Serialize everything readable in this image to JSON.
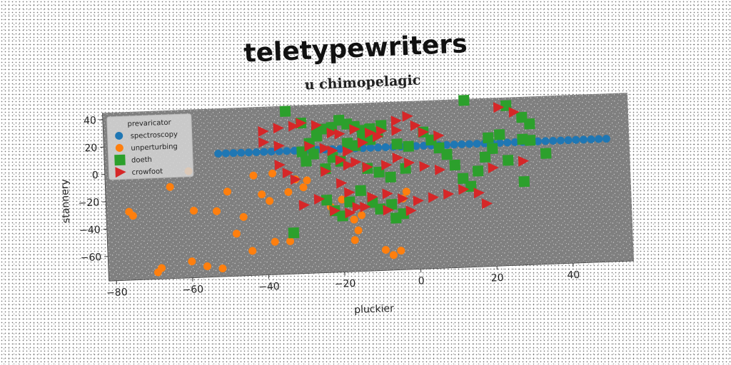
{
  "chart_data": {
    "type": "scatter",
    "title": "teletypewriters",
    "subtitle": "u chimopelagic",
    "xlabel": "pluckier",
    "ylabel": "stannery",
    "xlim": [
      -82,
      56
    ],
    "ylim": [
      -78,
      45
    ],
    "xticks": [
      -80,
      -60,
      -40,
      -20,
      0,
      20,
      40
    ],
    "yticks": [
      -60,
      -40,
      -20,
      0,
      20,
      40
    ],
    "tick_labels_x": [
      "−80",
      "−60",
      "−40",
      "−20",
      "0",
      "20",
      "40"
    ],
    "tick_labels_y": [
      "−60",
      "−40",
      "−20",
      "0",
      "20",
      "40"
    ],
    "grid": false,
    "legend": {
      "title": "prevaricator",
      "position": "top-left"
    },
    "series": [
      {
        "name": "spectroscopy",
        "marker": "circle",
        "color": "#1f77b4",
        "points": [
          [
            -52,
            12
          ],
          [
            -50,
            12
          ],
          [
            -48,
            12
          ],
          [
            -46,
            12
          ],
          [
            -44,
            12
          ],
          [
            -42,
            12
          ],
          [
            -40,
            12
          ],
          [
            -38,
            12
          ],
          [
            -36,
            12
          ],
          [
            -34,
            12
          ],
          [
            -32,
            12
          ],
          [
            -30,
            12
          ],
          [
            -28,
            12
          ],
          [
            -26,
            12
          ],
          [
            -24,
            12
          ],
          [
            -22,
            12
          ],
          [
            -20,
            12
          ],
          [
            -18,
            12
          ],
          [
            -16,
            12
          ],
          [
            -14,
            12
          ],
          [
            -12,
            12
          ],
          [
            -10,
            12
          ],
          [
            -8,
            12
          ],
          [
            -6,
            12
          ],
          [
            -4,
            12
          ],
          [
            -2,
            12
          ],
          [
            0,
            12
          ],
          [
            2,
            12
          ],
          [
            4,
            12
          ],
          [
            6,
            12
          ],
          [
            8,
            12
          ],
          [
            10,
            12
          ],
          [
            12,
            12
          ],
          [
            14,
            12
          ],
          [
            16,
            12
          ],
          [
            18,
            12
          ],
          [
            20,
            12
          ],
          [
            22,
            12
          ],
          [
            24,
            12
          ],
          [
            26,
            12
          ],
          [
            28,
            12
          ],
          [
            30,
            12
          ],
          [
            32,
            12
          ],
          [
            34,
            12
          ],
          [
            36,
            12
          ],
          [
            38,
            12
          ],
          [
            40,
            12
          ],
          [
            42,
            12
          ],
          [
            44,
            12
          ],
          [
            46,
            12
          ],
          [
            48,
            12
          ],
          [
            50,
            12
          ]
        ]
      },
      {
        "name": "unperturbing",
        "marker": "circle",
        "color": "#ff7f0e",
        "points": [
          [
            -76,
            -28
          ],
          [
            -75,
            -31
          ],
          [
            -69,
            -73
          ],
          [
            -68,
            -70
          ],
          [
            -65,
            -11
          ],
          [
            -60,
            0
          ],
          [
            -60,
            -66
          ],
          [
            -59,
            -29
          ],
          [
            -56,
            -70
          ],
          [
            -53,
            -30
          ],
          [
            -52,
            -72
          ],
          [
            -50,
            -16
          ],
          [
            -48,
            -47
          ],
          [
            -46,
            -35
          ],
          [
            -44,
            -60
          ],
          [
            -43,
            -5
          ],
          [
            -41,
            -19
          ],
          [
            -39,
            -24
          ],
          [
            -38,
            -54
          ],
          [
            -38,
            -4
          ],
          [
            -34,
            -54
          ],
          [
            -34,
            -18
          ],
          [
            -32,
            -9
          ],
          [
            -30,
            -15
          ],
          [
            -29,
            -10
          ],
          [
            -23,
            -30
          ],
          [
            -20,
            -25
          ],
          [
            -17,
            -40
          ],
          [
            -17,
            -55
          ],
          [
            -16,
            -48
          ],
          [
            -15,
            -37
          ],
          [
            -12,
            -25
          ],
          [
            -9,
            -63
          ],
          [
            -7,
            -67
          ],
          [
            -5,
            -64
          ],
          [
            -4,
            -26
          ],
          [
            -3,
            -21
          ]
        ]
      },
      {
        "name": "doeth",
        "marker": "square",
        "color": "#2ca02c",
        "points": [
          [
            -34,
            41
          ],
          [
            -30,
            32
          ],
          [
            -26,
            25
          ],
          [
            -24,
            27
          ],
          [
            -22,
            28
          ],
          [
            -20,
            33
          ],
          [
            -18,
            30
          ],
          [
            -16,
            28
          ],
          [
            -14,
            25
          ],
          [
            -12,
            26
          ],
          [
            -10,
            23
          ],
          [
            -9,
            28
          ],
          [
            -14,
            19
          ],
          [
            -12,
            18
          ],
          [
            -16,
            14
          ],
          [
            -18,
            16
          ],
          [
            -26,
            22
          ],
          [
            -28,
            17
          ],
          [
            -30,
            11
          ],
          [
            -27,
            9
          ],
          [
            -29,
            4
          ],
          [
            -24,
            -2
          ],
          [
            -22,
            6
          ],
          [
            -20,
            3
          ],
          [
            -13,
            -3
          ],
          [
            -10,
            -6
          ],
          [
            -7,
            -10
          ],
          [
            -3,
            -4
          ],
          [
            -5,
            14
          ],
          [
            -2,
            12
          ],
          [
            2,
            22
          ],
          [
            4,
            16
          ],
          [
            6,
            10
          ],
          [
            8,
            5
          ],
          [
            10,
            -3
          ],
          [
            12,
            -13
          ],
          [
            14,
            -19
          ],
          [
            16,
            -8
          ],
          [
            18,
            2
          ],
          [
            20,
            8
          ],
          [
            24,
            -1
          ],
          [
            28,
            -17
          ],
          [
            30,
            13
          ],
          [
            34,
            3
          ],
          [
            13,
            44
          ],
          [
            24,
            39
          ],
          [
            28,
            30
          ],
          [
            30,
            25
          ],
          [
            28,
            14
          ],
          [
            22,
            18
          ],
          [
            19,
            16
          ],
          [
            -24,
            -25
          ],
          [
            -22,
            -33
          ],
          [
            -20,
            -37
          ],
          [
            -18,
            -27
          ],
          [
            -15,
            -19
          ],
          [
            -12,
            -28
          ],
          [
            -10,
            -33
          ],
          [
            -7,
            -30
          ],
          [
            -6,
            -40
          ],
          [
            -4,
            -37
          ],
          [
            -33,
            -48
          ]
        ]
      },
      {
        "name": "crowfoot",
        "marker": "triangle-right",
        "color": "#d62728",
        "points": [
          [
            -40,
            27
          ],
          [
            -36,
            29
          ],
          [
            -32,
            30
          ],
          [
            -30,
            32
          ],
          [
            -26,
            30
          ],
          [
            -22,
            24
          ],
          [
            -20,
            23
          ],
          [
            -16,
            26
          ],
          [
            -12,
            23
          ],
          [
            -9,
            24
          ],
          [
            -5,
            31
          ],
          [
            -2,
            34
          ],
          [
            0,
            27
          ],
          [
            2,
            22
          ],
          [
            6,
            19
          ],
          [
            -5,
            24
          ],
          [
            -40,
            19
          ],
          [
            -36,
            16
          ],
          [
            -28,
            15
          ],
          [
            -24,
            13
          ],
          [
            -22,
            11
          ],
          [
            -18,
            10
          ],
          [
            -14,
            16
          ],
          [
            -10,
            20
          ],
          [
            -20,
            4
          ],
          [
            -18,
            0
          ],
          [
            -16,
            2
          ],
          [
            -13,
            -2
          ],
          [
            -8,
            -1
          ],
          [
            -5,
            4
          ],
          [
            -2,
            0
          ],
          [
            2,
            -3
          ],
          [
            6,
            -6
          ],
          [
            -36,
            2
          ],
          [
            -34,
            -4
          ],
          [
            -32,
            -9
          ],
          [
            -24,
            -4
          ],
          [
            -20,
            -13
          ],
          [
            -18,
            -20
          ],
          [
            -16,
            -31
          ],
          [
            -12,
            -24
          ],
          [
            -8,
            -22
          ],
          [
            -4,
            -26
          ],
          [
            0,
            -28
          ],
          [
            4,
            -26
          ],
          [
            8,
            -24
          ],
          [
            12,
            -21
          ],
          [
            16,
            -24
          ],
          [
            18,
            -32
          ],
          [
            20,
            -6
          ],
          [
            28,
            -2
          ],
          [
            22,
            38
          ],
          [
            26,
            34
          ],
          [
            -22,
            -33
          ],
          [
            -18,
            -35
          ],
          [
            -14,
            -31
          ],
          [
            -8,
            -34
          ],
          [
            -2,
            -35
          ],
          [
            -30,
            -28
          ],
          [
            -26,
            -24
          ]
        ]
      }
    ]
  }
}
